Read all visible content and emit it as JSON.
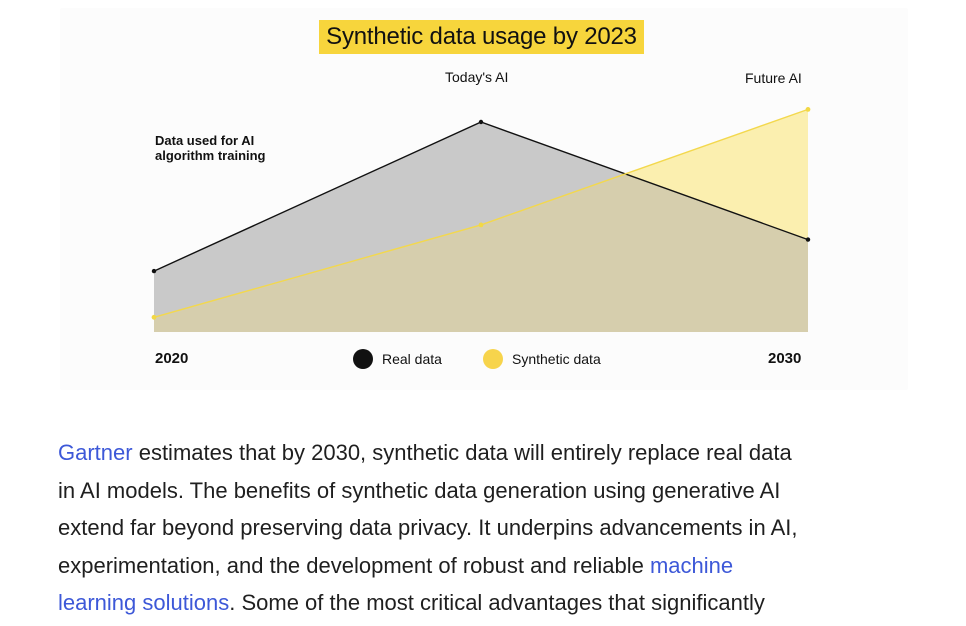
{
  "chart_data": {
    "type": "area",
    "title": "Synthetic data usage by 2023",
    "ylabel": "Data used for AI algorithm training",
    "x_start_label": "2020",
    "x_end_label": "2030",
    "phase_labels": {
      "today": "Today's AI",
      "future": "Future AI"
    },
    "series": [
      {
        "name": "Real data",
        "color": "#111111",
        "fill": "#c9c9c9",
        "points": [
          {
            "x": 2020,
            "y": 29
          },
          {
            "x": 2025,
            "y": 100
          },
          {
            "x": 2030,
            "y": 44
          }
        ]
      },
      {
        "name": "Synthetic data",
        "color": "#f3d84d",
        "fill": "#fbefaf",
        "points": [
          {
            "x": 2020,
            "y": 7
          },
          {
            "x": 2025,
            "y": 51
          },
          {
            "x": 2030,
            "y": 106
          }
        ]
      }
    ],
    "xlim": [
      2020,
      2030
    ],
    "ylim": [
      0,
      120
    ],
    "grid": false,
    "legend_placement": "bottom-center"
  },
  "legend": [
    {
      "label": "Real data",
      "color": "#111111"
    },
    {
      "label": "Synthetic data",
      "color": "#f7d44c"
    }
  ],
  "article": {
    "line1_link": "Gartner",
    "line1_text": " estimates that by 2030, synthetic data will entirely replace real data",
    "line2": "in AI models. The benefits of synthetic data generation using generative AI",
    "line3": "extend far beyond preserving data privacy. It underpins advancements in AI,",
    "line4_text": "experimentation, and the development of robust and reliable ",
    "line4_link": "machine",
    "line5_link": "learning solutions",
    "line5_text": ". Some of the most critical advantages that significantly",
    "link_color": "#3d58d8"
  }
}
